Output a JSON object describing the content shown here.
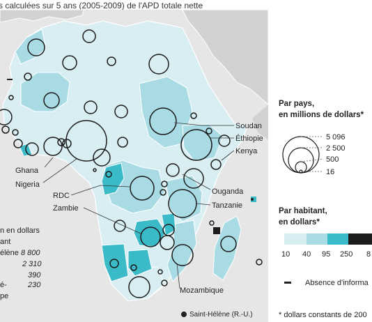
{
  "subtitle": "s calculées sur 5 ans (2005-2009) de l'APD totale nette",
  "colors": {
    "sea": "#e6e6e6",
    "other_land": "#d2d2d2",
    "tier1": "#d8eef3",
    "tier2": "#a9dbe4",
    "tier3": "#3bbac8",
    "tier4": "#1c1c1c",
    "circle": "#1a1a1a"
  },
  "country_labels": {
    "soudan": "Soudan",
    "ethiopie": "Éthiopie",
    "kenya": "Kenya",
    "ghana": "Ghana",
    "nigeria": "Nigeria",
    "rdc": "RDC",
    "zambie": "Zambie",
    "ouganda": "Ouganda",
    "tanzanie": "Tanzanie",
    "mozambique": "Mozambique"
  },
  "saint_helene_note": "Saint-Hélène (R.-U.)",
  "legend_size": {
    "title_line1": "Par pays,",
    "title_line2": "en millions de dollars*",
    "values": [
      "5 096",
      "2 500",
      "500",
      "16"
    ]
  },
  "legend_color": {
    "title_line1": "Par habitant,",
    "title_line2": "en dollars*",
    "breaks": [
      "10",
      "40",
      "95",
      "250",
      "8"
    ]
  },
  "absence_label": "Absence d'informa",
  "footnote": "* dollars constants de 200",
  "left_panel": {
    "line1": "n en dollars",
    "line2": "ant",
    "rows": [
      {
        "name": "élène",
        "value": "8 800"
      },
      {
        "name": "",
        "value": "2 310"
      },
      {
        "name": "",
        "value": "390"
      },
      {
        "name": "é-",
        "value": "230"
      },
      {
        "name": "pe",
        "value": ""
      }
    ]
  }
}
